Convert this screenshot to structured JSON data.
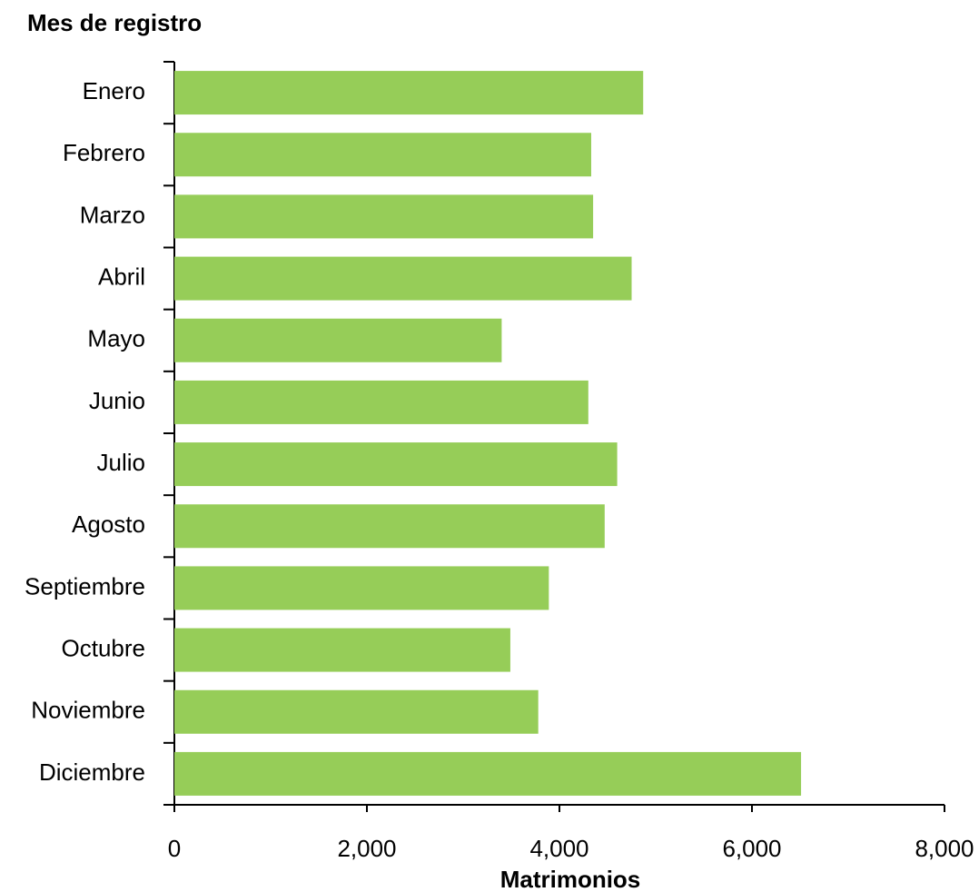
{
  "chart_data": {
    "type": "bar",
    "orientation": "horizontal",
    "y_label": "Mes de registro",
    "x_label": "Matrimonios",
    "categories": [
      "Enero",
      "Febrero",
      "Marzo",
      "Abril",
      "Mayo",
      "Junio",
      "Julio",
      "Agosto",
      "Septiembre",
      "Octubre",
      "Noviembre",
      "Diciembre"
    ],
    "values": [
      4870,
      4330,
      4350,
      4750,
      3400,
      4300,
      4600,
      4470,
      3890,
      3490,
      3780,
      6510
    ],
    "color": "#96cd58",
    "xlim": [
      0,
      8000
    ],
    "xticks": [
      0,
      {
        "value": 2000,
        "label": "2,000"
      },
      {
        "value": 4000,
        "label": "4,000"
      },
      {
        "value": 6000,
        "label": "6,000"
      },
      {
        "value": 8000,
        "label": "8,000"
      }
    ],
    "grid": false
  }
}
